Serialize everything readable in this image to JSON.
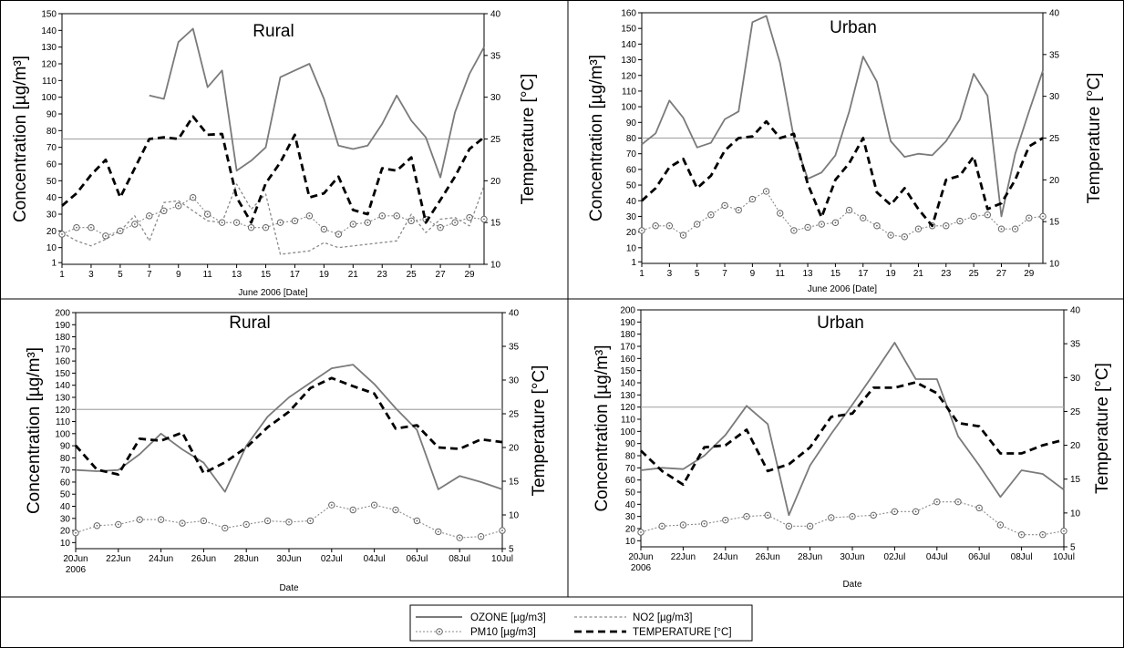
{
  "legend": {
    "ozone": "OZONE [µg/m3]",
    "no2": "NO2 [µg/m3]",
    "pm10": "PM10 [µg/m3]",
    "temperature": "TEMPERATURE [°C]"
  },
  "colors": {
    "ozone": "#7a7a7a",
    "no2": "#8a8a8a",
    "pm10": "#8a8a8a",
    "temperature": "#000000",
    "reference": "#aaaaaa",
    "border": "#000000"
  },
  "chart_data": [
    {
      "type": "line",
      "title": "Rural",
      "xlabel": "June 2006 [Date]",
      "ylabel": "Concentration [µg/m³]",
      "y2label": "Temperature [°C]",
      "ylim": [
        0,
        150
      ],
      "y2lim": [
        10,
        40
      ],
      "xlim": [
        1,
        30
      ],
      "x_ticks": [
        1,
        3,
        5,
        7,
        9,
        11,
        13,
        15,
        17,
        19,
        21,
        23,
        25,
        27,
        29
      ],
      "x_tick_labels": [
        "1",
        "3",
        "5",
        "7",
        "9",
        "11",
        "13",
        "15",
        "17",
        "19",
        "21",
        "23",
        "25",
        "27",
        "29"
      ],
      "y_ticks": [
        1,
        10,
        20,
        30,
        40,
        50,
        60,
        70,
        80,
        90,
        100,
        110,
        120,
        130,
        140,
        150
      ],
      "y2_ticks": [
        10,
        15,
        20,
        25,
        30,
        35,
        40
      ],
      "reference_line": 75,
      "series": [
        {
          "key": "ozone",
          "x": [
            7,
            8,
            9,
            10,
            11,
            12,
            13,
            14,
            15,
            16,
            17,
            18,
            19,
            20,
            21,
            22,
            23,
            24,
            25,
            26,
            27,
            28,
            29,
            30
          ],
          "values": [
            101,
            99,
            133,
            141,
            106,
            116,
            56,
            62,
            70,
            112,
            116,
            120,
            99,
            71,
            69,
            71,
            84,
            101,
            86,
            76,
            52,
            91,
            114,
            130
          ]
        },
        {
          "key": "no2",
          "x": [
            1,
            2,
            3,
            4,
            5,
            6,
            7,
            8,
            9,
            10,
            11,
            12,
            13,
            14,
            15,
            16,
            17,
            18,
            19,
            20,
            21,
            22,
            23,
            24,
            25,
            26,
            27,
            28,
            29,
            30
          ],
          "values": [
            19,
            14,
            11,
            15,
            20,
            29,
            14,
            37,
            38,
            32,
            26,
            25,
            48,
            33,
            42,
            6,
            7,
            8,
            13,
            10,
            11,
            12,
            13,
            14,
            30,
            19,
            27,
            28,
            23,
            47
          ]
        },
        {
          "key": "pm10",
          "x": [
            1,
            2,
            3,
            4,
            5,
            6,
            7,
            8,
            9,
            10,
            11,
            12,
            13,
            14,
            15,
            16,
            17,
            18,
            19,
            20,
            21,
            22,
            23,
            24,
            25,
            26,
            27,
            28,
            29,
            30
          ],
          "values": [
            18,
            22,
            22,
            17,
            20,
            24,
            29,
            32,
            35,
            40,
            30,
            25,
            25,
            22,
            22,
            25,
            26,
            29,
            21,
            18,
            24,
            25,
            29,
            29,
            26,
            27,
            22,
            25,
            28,
            27
          ]
        },
        {
          "key": "temperature",
          "axis": "right",
          "x": [
            1,
            2,
            3,
            4,
            5,
            6,
            7,
            8,
            9,
            10,
            11,
            12,
            13,
            14,
            15,
            16,
            17,
            18,
            19,
            20,
            21,
            22,
            23,
            24,
            25,
            26,
            27,
            28,
            29,
            30
          ],
          "values": [
            17,
            18.5,
            20.7,
            22.5,
            18,
            21.5,
            25,
            25.2,
            25,
            27.7,
            25.5,
            25.6,
            18,
            15,
            19.7,
            22.2,
            25.5,
            18,
            18.5,
            20.5,
            16.5,
            16,
            21.5,
            21.2,
            22.8,
            15,
            17.7,
            20.5,
            23.8,
            25.2
          ]
        }
      ]
    },
    {
      "type": "line",
      "title": "Urban",
      "xlabel": "June 2006 [Date]",
      "ylabel": "Concentration [µg/m³]",
      "y2label": "Temperature [°C]",
      "ylim": [
        0,
        160
      ],
      "y2lim": [
        10,
        40
      ],
      "xlim": [
        1,
        30
      ],
      "x_ticks": [
        1,
        3,
        5,
        7,
        9,
        11,
        13,
        15,
        17,
        19,
        21,
        23,
        25,
        27,
        29
      ],
      "x_tick_labels": [
        "1",
        "3",
        "5",
        "7",
        "9",
        "11",
        "13",
        "15",
        "17",
        "19",
        "21",
        "23",
        "25",
        "27",
        "29"
      ],
      "y_ticks": [
        1,
        10,
        20,
        30,
        40,
        50,
        60,
        70,
        80,
        90,
        100,
        110,
        120,
        130,
        140,
        150,
        160
      ],
      "y2_ticks": [
        10,
        15,
        20,
        25,
        30,
        35,
        40
      ],
      "reference_line": 80,
      "series": [
        {
          "key": "ozone",
          "x": [
            1,
            2,
            3,
            4,
            5,
            6,
            7,
            8,
            9,
            10,
            11,
            12,
            13,
            14,
            15,
            16,
            17,
            18,
            19,
            20,
            21,
            22,
            23,
            24,
            25,
            26,
            27,
            28,
            29,
            30
          ],
          "values": [
            76,
            83,
            104,
            93,
            74,
            77,
            92,
            97,
            154,
            158,
            128,
            80,
            54,
            58,
            69,
            97,
            132,
            116,
            78,
            68,
            70,
            69,
            78,
            92,
            121,
            107,
            30,
            70,
            97,
            123
          ]
        },
        {
          "key": "pm10",
          "x": [
            1,
            2,
            3,
            4,
            5,
            6,
            7,
            8,
            9,
            10,
            11,
            12,
            13,
            14,
            15,
            16,
            17,
            18,
            19,
            20,
            21,
            22,
            23,
            24,
            25,
            26,
            27,
            28,
            29,
            30
          ],
          "values": [
            21,
            24,
            24,
            18,
            25,
            31,
            37,
            34,
            41,
            46,
            32,
            21,
            23,
            25,
            26,
            34,
            29,
            24,
            18,
            17,
            22,
            24,
            24,
            27,
            30,
            31,
            22,
            22,
            29,
            30
          ]
        },
        {
          "key": "temperature",
          "axis": "right",
          "x": [
            1,
            2,
            3,
            4,
            5,
            6,
            7,
            8,
            9,
            10,
            11,
            12,
            13,
            14,
            15,
            16,
            17,
            18,
            19,
            20,
            21,
            22,
            23,
            24,
            25,
            26,
            27,
            28,
            29,
            30
          ],
          "values": [
            17.5,
            19,
            21.5,
            22.5,
            19,
            20.5,
            23.5,
            25,
            25.2,
            27,
            25,
            25.5,
            19.5,
            15.5,
            20,
            22,
            25,
            18.5,
            17,
            19,
            16.5,
            14.5,
            20,
            20.5,
            22.8,
            16.5,
            17.2,
            20,
            24,
            25
          ]
        }
      ]
    },
    {
      "type": "line",
      "title": "Rural",
      "xlabel": "Date",
      "ylabel": "Concentration [µg/m³]",
      "y2label": "Temperature [°C]",
      "ylim": [
        5,
        200
      ],
      "y2lim": [
        5,
        40
      ],
      "xlim": [
        0,
        20
      ],
      "x_ticks": [
        0,
        2,
        4,
        6,
        8,
        10,
        12,
        14,
        16,
        18,
        20
      ],
      "x_tick_labels": [
        "20Jun",
        "22Jun",
        "24Jun",
        "26Jun",
        "28Jun",
        "30Jun",
        "02Jul",
        "04Jul",
        "06Jul",
        "08Jul",
        "10Jul"
      ],
      "x_sublabel": "2006",
      "y_ticks": [
        10,
        20,
        30,
        40,
        50,
        60,
        70,
        80,
        90,
        100,
        110,
        120,
        130,
        140,
        150,
        160,
        170,
        180,
        190,
        200
      ],
      "y2_ticks": [
        5,
        10,
        15,
        20,
        25,
        30,
        35,
        40
      ],
      "reference_line": 120,
      "series": [
        {
          "key": "ozone",
          "x": [
            0,
            1,
            2,
            3,
            4,
            5,
            6,
            7,
            8,
            9,
            10,
            11,
            12,
            13,
            14,
            15,
            16,
            17,
            18,
            19,
            20
          ],
          "values": [
            70,
            69,
            70,
            83,
            100,
            87,
            76,
            52,
            90,
            114,
            130,
            142,
            154,
            157,
            141,
            121,
            103,
            54,
            65,
            60,
            54
          ]
        },
        {
          "key": "pm10",
          "x": [
            0,
            1,
            2,
            3,
            4,
            5,
            6,
            7,
            8,
            9,
            10,
            11,
            12,
            13,
            14,
            15,
            16,
            17,
            18,
            19,
            20
          ],
          "values": [
            18,
            24,
            25,
            29,
            29,
            26,
            28,
            22,
            25,
            28,
            27,
            28,
            41,
            37,
            41,
            37,
            28,
            19,
            14,
            15,
            20
          ]
        },
        {
          "key": "temperature",
          "axis": "right",
          "x": [
            0,
            1,
            2,
            3,
            4,
            5,
            6,
            7,
            8,
            9,
            10,
            11,
            12,
            13,
            14,
            15,
            16,
            17,
            18,
            19,
            20
          ],
          "values": [
            20.3,
            16.7,
            16,
            21.3,
            21,
            22.2,
            16.2,
            17.8,
            20,
            23,
            25.3,
            28.8,
            30.3,
            29.1,
            28,
            22.8,
            23.3,
            20,
            19.8,
            21.2,
            20.8
          ]
        }
      ]
    },
    {
      "type": "line",
      "title": "Urban",
      "xlabel": "Date",
      "ylabel": "Concentration [µg/m³]",
      "y2label": "Temperature [°C]",
      "ylim": [
        5,
        200
      ],
      "y2lim": [
        5,
        40
      ],
      "xlim": [
        0,
        20
      ],
      "x_ticks": [
        0,
        2,
        4,
        6,
        8,
        10,
        12,
        14,
        16,
        18,
        20
      ],
      "x_tick_labels": [
        "20Jun",
        "22Jun",
        "24Jun",
        "26Jun",
        "28Jun",
        "30Jun",
        "02Jul",
        "04Jul",
        "06Jul",
        "08Jul",
        "10Jul"
      ],
      "x_sublabel": "2006",
      "y_ticks": [
        10,
        20,
        30,
        40,
        50,
        60,
        70,
        80,
        90,
        100,
        110,
        120,
        130,
        140,
        150,
        160,
        170,
        180,
        190,
        200
      ],
      "y2_ticks": [
        5,
        10,
        15,
        20,
        25,
        30,
        35,
        40
      ],
      "reference_line": 120,
      "series": [
        {
          "key": "ozone",
          "x": [
            0,
            1,
            2,
            3,
            4,
            5,
            6,
            7,
            8,
            9,
            10,
            11,
            12,
            13,
            14,
            15,
            16,
            17,
            18,
            19,
            20
          ],
          "values": [
            68,
            70,
            69,
            80,
            97,
            121,
            106,
            31,
            72,
            98,
            122,
            147,
            173,
            143,
            143,
            96,
            72,
            46,
            68,
            65,
            52
          ]
        },
        {
          "key": "pm10",
          "x": [
            0,
            1,
            2,
            3,
            4,
            5,
            6,
            7,
            8,
            9,
            10,
            11,
            12,
            13,
            14,
            15,
            16,
            17,
            18,
            19,
            20
          ],
          "values": [
            17,
            22,
            23,
            24,
            27,
            30,
            31,
            22,
            22,
            29,
            30,
            31,
            34,
            34,
            42,
            42,
            37,
            23,
            15,
            15,
            18
          ]
        },
        {
          "key": "temperature",
          "axis": "right",
          "x": [
            0,
            1,
            2,
            3,
            4,
            5,
            6,
            7,
            8,
            9,
            10,
            11,
            12,
            13,
            14,
            15,
            16,
            17,
            18,
            19,
            20
          ],
          "values": [
            19.2,
            16.2,
            14.2,
            19.7,
            20,
            22.3,
            16.2,
            17.2,
            19.7,
            24.2,
            24.7,
            28.5,
            28.5,
            29.3,
            27.7,
            23.3,
            22.8,
            18.8,
            18.8,
            20,
            20.8
          ]
        }
      ]
    }
  ]
}
